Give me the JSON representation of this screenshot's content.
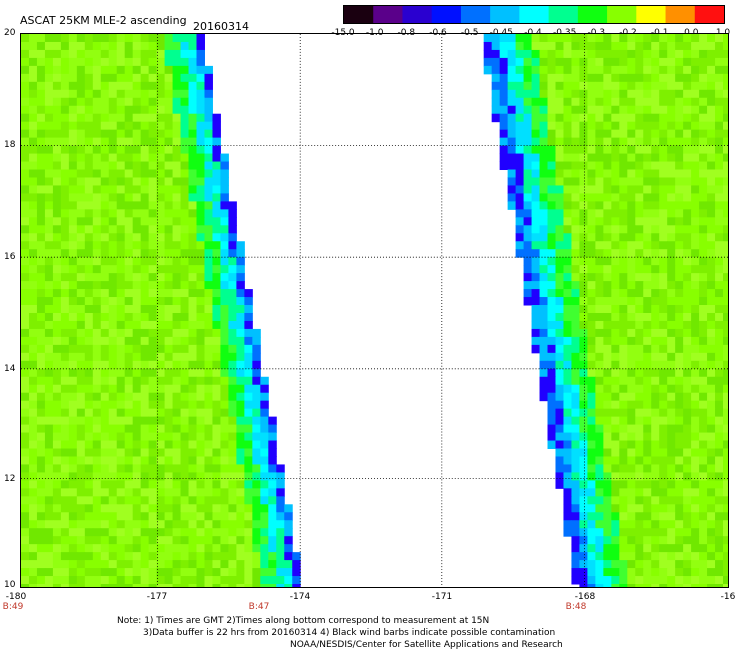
{
  "header": {
    "title": "ASCAT 25KM MLE-2 ascending",
    "date": "20160314"
  },
  "colorbar": {
    "labels": [
      "-15.0",
      "-1.0",
      "-0.8",
      "-0.6",
      "-0.5",
      "-0.45",
      "-0.4",
      "-0.35",
      "-0.3",
      "-0.2",
      "-0.1",
      "0.0",
      "1.0"
    ],
    "colors": [
      "#1a0010",
      "#5a008a",
      "#2a00d0",
      "#0010ff",
      "#0070ff",
      "#00c0ff",
      "#00ffff",
      "#00ff90",
      "#10ff10",
      "#88ff00",
      "#ffff00",
      "#ff9000",
      "#ff1010"
    ]
  },
  "map": {
    "lat_labels": [
      "20",
      "18",
      "16",
      "14",
      "12",
      "10"
    ],
    "lon_labels": [
      "-180",
      "-177",
      "-174",
      "-171",
      "-168",
      "-16"
    ],
    "time_labels": [
      "B:49",
      "B:47",
      "B:48"
    ]
  },
  "footer": {
    "note_line1": "Note: 1) Times are GMT 2)Times along bottom correspond to measurement at 15N",
    "note_line2": "3)Data buffer is 22 hrs from 20160314 4) Black wind barbs indicate possible contamination",
    "credit": "NOAA/NESDIS/Center for Satellite Applications and Research"
  }
}
